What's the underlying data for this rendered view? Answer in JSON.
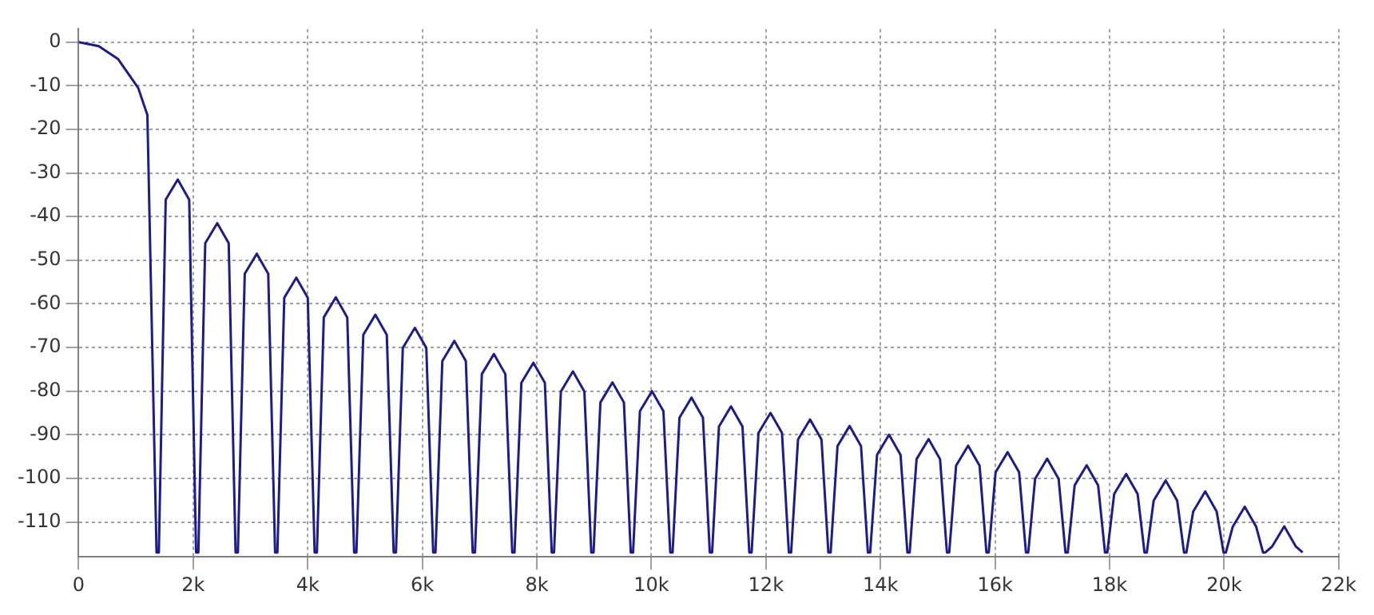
{
  "chart_data": {
    "type": "line",
    "x": [
      0,
      0.35,
      0.69,
      1.04,
      1.2,
      1.36,
      1.4,
      1.52,
      1.73,
      1.93,
      2.05,
      2.09,
      2.21,
      2.42,
      2.62,
      2.74,
      2.78,
      2.9,
      3.11,
      3.31,
      3.43,
      3.47,
      3.59,
      3.8,
      4.0,
      4.12,
      4.16,
      4.28,
      4.49,
      4.69,
      4.81,
      4.85,
      4.97,
      5.18,
      5.38,
      5.5,
      5.54,
      5.66,
      5.87,
      6.07,
      6.19,
      6.23,
      6.35,
      6.56,
      6.76,
      6.88,
      6.92,
      7.04,
      7.25,
      7.45,
      7.57,
      7.61,
      7.73,
      7.94,
      8.14,
      8.26,
      8.3,
      8.42,
      8.63,
      8.83,
      8.95,
      8.99,
      9.11,
      9.32,
      9.52,
      9.64,
      9.68,
      9.8,
      10.01,
      10.21,
      10.33,
      10.37,
      10.49,
      10.7,
      10.9,
      11.02,
      11.06,
      11.18,
      11.39,
      11.59,
      11.71,
      11.75,
      11.87,
      12.08,
      12.28,
      12.4,
      12.44,
      12.56,
      12.77,
      12.97,
      13.09,
      13.13,
      13.25,
      13.46,
      13.66,
      13.78,
      13.82,
      13.94,
      14.15,
      14.35,
      14.47,
      14.51,
      14.63,
      14.84,
      15.04,
      15.16,
      15.2,
      15.32,
      15.53,
      15.73,
      15.85,
      15.89,
      16.01,
      16.22,
      16.42,
      16.54,
      16.58,
      16.7,
      16.91,
      17.11,
      17.23,
      17.27,
      17.39,
      17.6,
      17.8,
      17.92,
      17.96,
      18.08,
      18.29,
      18.49,
      18.61,
      18.65,
      18.77,
      18.98,
      19.18,
      19.3,
      19.34,
      19.46,
      19.67,
      19.87,
      19.99,
      20.03,
      20.15,
      20.36,
      20.56,
      20.68,
      20.72,
      20.84,
      21.05,
      21.25,
      21.37
    ],
    "series": [
      {
        "color": "#1c1c8c",
        "values": [
          0,
          -0.9,
          -3.9,
          -10.5,
          -16.7,
          -117,
          -117,
          -36.1,
          -31.5,
          -36.1,
          -117,
          -117,
          -46.1,
          -41.5,
          -46.1,
          -117,
          -117,
          -53.1,
          -48.5,
          -53.1,
          -117,
          -117,
          -58.6,
          -54,
          -58.6,
          -117,
          -117,
          -63.1,
          -58.5,
          -63.1,
          -117,
          -117,
          -67.1,
          -62.5,
          -67.1,
          -117,
          -117,
          -70.1,
          -65.5,
          -70.1,
          -117,
          -117,
          -73.1,
          -68.5,
          -73.1,
          -117,
          -117,
          -76.1,
          -71.5,
          -76.1,
          -117,
          -117,
          -78.1,
          -73.5,
          -78.1,
          -117,
          -117,
          -80.1,
          -75.5,
          -80.1,
          -117,
          -117,
          -82.6,
          -78,
          -82.6,
          -117,
          -117,
          -84.6,
          -80,
          -84.6,
          -117,
          -117,
          -86.1,
          -81.5,
          -86.1,
          -117,
          -117,
          -88.1,
          -83.5,
          -88.1,
          -117,
          -117,
          -89.6,
          -85,
          -89.6,
          -117,
          -117,
          -91.1,
          -86.5,
          -91.1,
          -117,
          -117,
          -92.6,
          -88,
          -92.6,
          -117,
          -117,
          -94.6,
          -90,
          -94.6,
          -117,
          -117,
          -95.6,
          -91,
          -95.6,
          -117,
          -117,
          -97.1,
          -92.5,
          -97.1,
          -117,
          -117,
          -98.6,
          -94,
          -98.6,
          -117,
          -117,
          -100.1,
          -95.5,
          -100.1,
          -117,
          -117,
          -101.6,
          -97,
          -101.6,
          -117,
          -117,
          -103.6,
          -99,
          -103.6,
          -117,
          -117,
          -105.1,
          -100.5,
          -105.1,
          -117,
          -117,
          -107.6,
          -103,
          -107.6,
          -117,
          -117,
          -111.1,
          -106.5,
          -111.1,
          -117,
          -117,
          -115.6,
          -111,
          -115.6,
          -117
        ]
      }
    ],
    "xlim": [
      0,
      22
    ],
    "xticks": [
      0,
      {
        "value": 2,
        "label": "2k"
      },
      {
        "value": 4,
        "label": "4k"
      },
      {
        "value": 6,
        "label": "6k"
      },
      {
        "value": 8,
        "label": "8k"
      },
      {
        "value": 10,
        "label": "10k"
      },
      {
        "value": 12,
        "label": "12k"
      },
      {
        "value": 14,
        "label": "14k"
      },
      {
        "value": 16,
        "label": "16k"
      },
      {
        "value": 18,
        "label": "18k"
      },
      {
        "value": 20,
        "label": "20k"
      },
      {
        "value": 22,
        "label": "22k"
      }
    ],
    "ylim": [
      -118,
      3
    ],
    "yticks": [
      0,
      -10,
      -20,
      -30,
      -40,
      -50,
      -60,
      -70,
      -80,
      -90,
      -100,
      -110
    ],
    "grid": true,
    "legend": false,
    "marker": "none",
    "line_style": "solid"
  }
}
